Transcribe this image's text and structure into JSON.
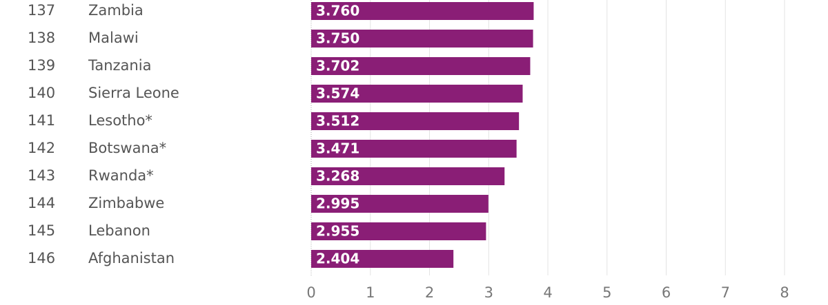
{
  "chart_data": {
    "type": "bar",
    "orientation": "horizontal",
    "ranks": [
      "137",
      "138",
      "139",
      "140",
      "141",
      "142",
      "143",
      "144",
      "145",
      "146"
    ],
    "categories": [
      "Zambia",
      "Malawi",
      "Tanzania",
      "Sierra Leone",
      "Lesotho*",
      "Botswana*",
      "Rwanda*",
      "Zimbabwe",
      "Lebanon",
      "Afghanistan"
    ],
    "values": [
      3.76,
      3.75,
      3.702,
      3.574,
      3.512,
      3.471,
      3.268,
      2.995,
      2.955,
      2.404
    ],
    "value_labels": [
      "3.760",
      "3.750",
      "3.702",
      "3.574",
      "3.512",
      "3.471",
      "3.268",
      "2.995",
      "2.955",
      "2.404"
    ],
    "color": "#8a1e76",
    "xlim": [
      0,
      8
    ],
    "xticks": [
      0,
      1,
      2,
      3,
      4,
      5,
      6,
      7,
      8
    ],
    "grid": true
  }
}
